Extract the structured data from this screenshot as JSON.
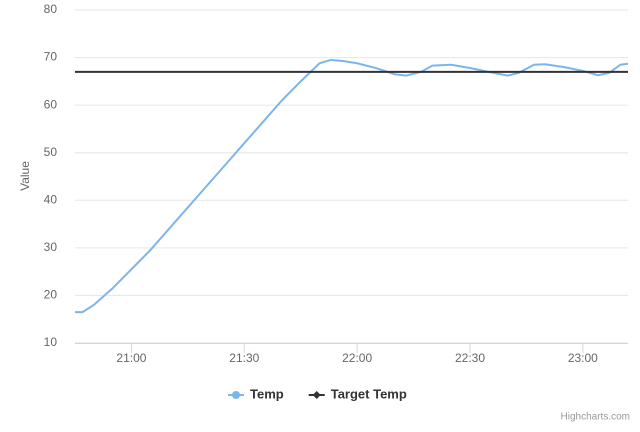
{
  "chart_data": {
    "type": "line",
    "y_axis_label": "Value",
    "xlim": [
      1245,
      1392
    ],
    "xticks": [
      {
        "value": 1260,
        "label": "21:00"
      },
      {
        "value": 1290,
        "label": "21:30"
      },
      {
        "value": 1320,
        "label": "22:00"
      },
      {
        "value": 1350,
        "label": "22:30"
      },
      {
        "value": 1380,
        "label": "23:00"
      }
    ],
    "ylim": [
      10,
      80
    ],
    "yticks": [
      10,
      20,
      30,
      40,
      50,
      60,
      70,
      80
    ],
    "grid": true,
    "legend": "bottom",
    "series": [
      {
        "name": "Temp",
        "color": "#7cb5ec",
        "x": [
          1245,
          1247,
          1250,
          1255,
          1260,
          1265,
          1270,
          1275,
          1280,
          1285,
          1290,
          1295,
          1300,
          1305,
          1310,
          1313,
          1316,
          1320,
          1325,
          1330,
          1333,
          1337,
          1340,
          1345,
          1350,
          1355,
          1360,
          1363,
          1367,
          1370,
          1375,
          1380,
          1384,
          1387,
          1390,
          1392
        ],
        "values": [
          16.5,
          16.5,
          18,
          21.5,
          25.5,
          29.5,
          34,
          38.5,
          43,
          47.5,
          52,
          56.5,
          61,
          65,
          68.8,
          69.5,
          69.3,
          68.8,
          67.8,
          66.5,
          66.2,
          67,
          68.3,
          68.5,
          67.8,
          67,
          66.2,
          66.8,
          68.5,
          68.6,
          68,
          67.2,
          66.3,
          66.8,
          68.5,
          68.7
        ]
      },
      {
        "name": "Target Temp",
        "color": "#333333",
        "x": [
          1245,
          1392
        ],
        "values": [
          67,
          67
        ]
      }
    ],
    "credit": "Highcharts.com"
  }
}
